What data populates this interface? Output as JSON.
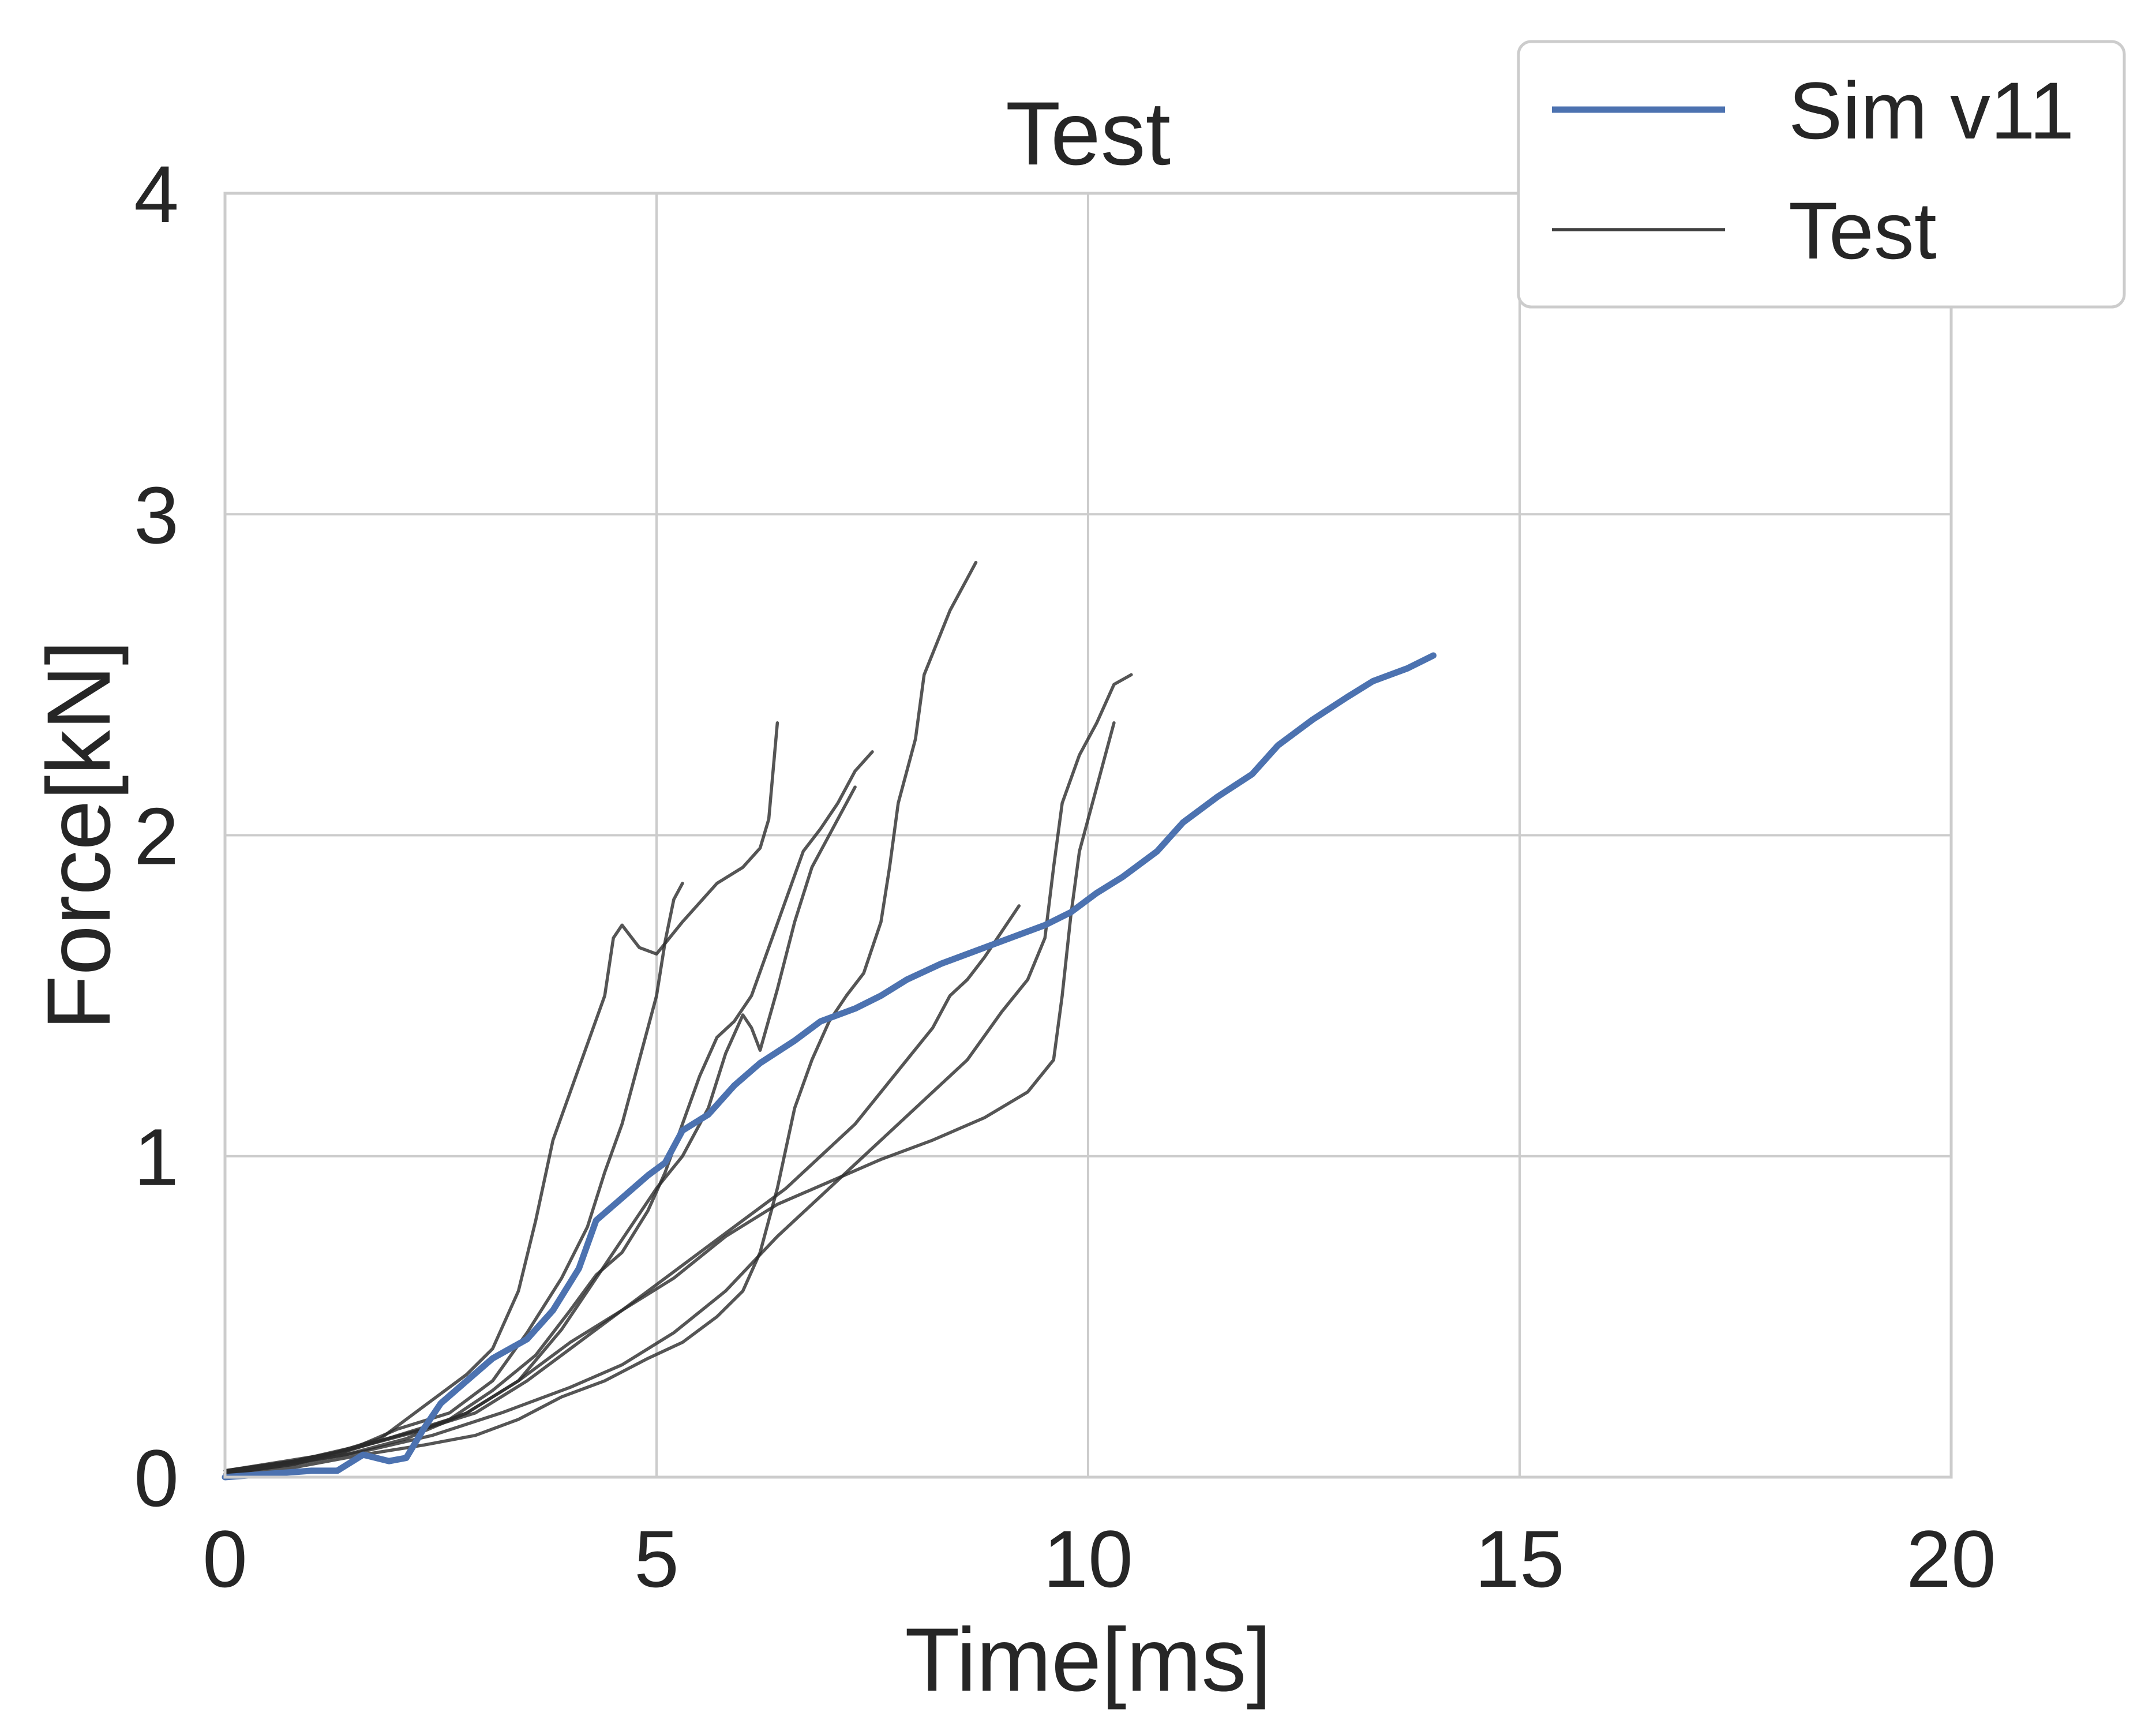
{
  "chart_data": {
    "type": "line",
    "title": "Test",
    "xlabel": "Time[ms]",
    "ylabel": "Force[kN]",
    "xlim": [
      0,
      20
    ],
    "ylim": [
      0,
      4
    ],
    "xticks": [
      0,
      5,
      10,
      15,
      20
    ],
    "yticks": [
      0,
      1,
      2,
      3,
      4
    ],
    "xtick_labels": [
      "0",
      "5",
      "10",
      "15",
      "20"
    ],
    "ytick_labels": [
      "0",
      "1",
      "2",
      "3",
      "4"
    ],
    "grid": true,
    "legend_position": "top-right",
    "legend": [
      {
        "label": "Sim v11",
        "color": "#4c72b0",
        "style": "thick"
      },
      {
        "label": "Test",
        "color": "#404040",
        "style": "thin"
      }
    ],
    "series": [
      {
        "name": "Sim v11",
        "color": "#4c72b0",
        "points": [
          [
            0,
            0.0
          ],
          [
            0.5,
            0.01
          ],
          [
            1.0,
            0.02
          ],
          [
            1.3,
            0.02
          ],
          [
            1.6,
            0.07
          ],
          [
            1.9,
            0.05
          ],
          [
            2.1,
            0.06
          ],
          [
            2.3,
            0.15
          ],
          [
            2.5,
            0.23
          ],
          [
            2.8,
            0.3
          ],
          [
            3.1,
            0.37
          ],
          [
            3.5,
            0.43
          ],
          [
            3.8,
            0.52
          ],
          [
            4.1,
            0.65
          ],
          [
            4.3,
            0.8
          ],
          [
            4.6,
            0.87
          ],
          [
            4.9,
            0.94
          ],
          [
            5.1,
            0.98
          ],
          [
            5.3,
            1.08
          ],
          [
            5.6,
            1.13
          ],
          [
            5.9,
            1.22
          ],
          [
            6.2,
            1.29
          ],
          [
            6.6,
            1.36
          ],
          [
            6.9,
            1.42
          ],
          [
            7.3,
            1.46
          ],
          [
            7.6,
            1.5
          ],
          [
            7.9,
            1.55
          ],
          [
            8.3,
            1.6
          ],
          [
            8.7,
            1.64
          ],
          [
            9.1,
            1.68
          ],
          [
            9.5,
            1.72
          ],
          [
            9.8,
            1.76
          ],
          [
            10.1,
            1.82
          ],
          [
            10.4,
            1.87
          ],
          [
            10.8,
            1.95
          ],
          [
            11.1,
            2.04
          ],
          [
            11.5,
            2.12
          ],
          [
            11.9,
            2.19
          ],
          [
            12.2,
            2.28
          ],
          [
            12.6,
            2.36
          ],
          [
            13.0,
            2.43
          ],
          [
            13.3,
            2.48
          ],
          [
            13.7,
            2.52
          ],
          [
            14.0,
            2.56
          ]
        ]
      },
      {
        "name": "",
        "color": "#2b2b2b",
        "points": [
          [
            0,
            0.02
          ],
          [
            0.6,
            0.04
          ],
          [
            1.2,
            0.07
          ],
          [
            1.8,
            0.12
          ],
          [
            2.3,
            0.22
          ],
          [
            2.8,
            0.32
          ],
          [
            3.1,
            0.4
          ],
          [
            3.4,
            0.58
          ],
          [
            3.6,
            0.8
          ],
          [
            3.8,
            1.05
          ],
          [
            4.0,
            1.2
          ],
          [
            4.2,
            1.35
          ],
          [
            4.4,
            1.5
          ],
          [
            4.5,
            1.68
          ],
          [
            4.6,
            1.72
          ],
          [
            4.8,
            1.65
          ],
          [
            5.0,
            1.63
          ],
          [
            5.3,
            1.73
          ],
          [
            5.7,
            1.85
          ],
          [
            6.0,
            1.9
          ],
          [
            6.2,
            1.96
          ],
          [
            6.3,
            2.05
          ],
          [
            6.4,
            2.35
          ]
        ]
      },
      {
        "name": "",
        "color": "#2b2b2b",
        "points": [
          [
            0,
            0.01
          ],
          [
            0.8,
            0.04
          ],
          [
            1.4,
            0.08
          ],
          [
            2.0,
            0.15
          ],
          [
            2.6,
            0.2
          ],
          [
            3.1,
            0.3
          ],
          [
            3.5,
            0.45
          ],
          [
            3.9,
            0.62
          ],
          [
            4.2,
            0.78
          ],
          [
            4.4,
            0.95
          ],
          [
            4.6,
            1.1
          ],
          [
            4.8,
            1.3
          ],
          [
            5.0,
            1.5
          ],
          [
            5.1,
            1.67
          ],
          [
            5.2,
            1.8
          ],
          [
            5.3,
            1.85
          ]
        ]
      },
      {
        "name": "",
        "color": "#2b2b2b",
        "points": [
          [
            0,
            0.02
          ],
          [
            0.7,
            0.05
          ],
          [
            1.4,
            0.08
          ],
          [
            2.0,
            0.13
          ],
          [
            2.6,
            0.18
          ],
          [
            3.1,
            0.27
          ],
          [
            3.6,
            0.38
          ],
          [
            4.0,
            0.52
          ],
          [
            4.3,
            0.63
          ],
          [
            4.6,
            0.7
          ],
          [
            4.9,
            0.83
          ],
          [
            5.1,
            0.95
          ],
          [
            5.3,
            1.1
          ],
          [
            5.5,
            1.25
          ],
          [
            5.7,
            1.37
          ],
          [
            5.9,
            1.42
          ],
          [
            6.1,
            1.5
          ],
          [
            6.3,
            1.65
          ],
          [
            6.5,
            1.8
          ],
          [
            6.7,
            1.95
          ],
          [
            6.9,
            2.02
          ],
          [
            7.1,
            2.1
          ],
          [
            7.3,
            2.2
          ],
          [
            7.5,
            2.26
          ]
        ]
      },
      {
        "name": "",
        "color": "#2b2b2b",
        "points": [
          [
            0,
            0.01
          ],
          [
            0.7,
            0.04
          ],
          [
            1.4,
            0.07
          ],
          [
            2.1,
            0.12
          ],
          [
            2.8,
            0.2
          ],
          [
            3.4,
            0.3
          ],
          [
            3.9,
            0.46
          ],
          [
            4.3,
            0.62
          ],
          [
            4.7,
            0.78
          ],
          [
            5.0,
            0.9
          ],
          [
            5.3,
            1.0
          ],
          [
            5.6,
            1.15
          ],
          [
            5.8,
            1.32
          ],
          [
            6.0,
            1.44
          ],
          [
            6.1,
            1.4
          ],
          [
            6.2,
            1.33
          ],
          [
            6.4,
            1.52
          ],
          [
            6.6,
            1.73
          ],
          [
            6.8,
            1.9
          ],
          [
            7.0,
            2.0
          ],
          [
            7.2,
            2.1
          ],
          [
            7.3,
            2.15
          ]
        ]
      },
      {
        "name": "",
        "color": "#2b2b2b",
        "points": [
          [
            0,
            0.01
          ],
          [
            0.8,
            0.03
          ],
          [
            1.6,
            0.07
          ],
          [
            2.3,
            0.1
          ],
          [
            2.9,
            0.13
          ],
          [
            3.4,
            0.18
          ],
          [
            3.9,
            0.25
          ],
          [
            4.4,
            0.3
          ],
          [
            4.9,
            0.37
          ],
          [
            5.3,
            0.42
          ],
          [
            5.7,
            0.5
          ],
          [
            6.0,
            0.58
          ],
          [
            6.2,
            0.7
          ],
          [
            6.4,
            0.9
          ],
          [
            6.6,
            1.15
          ],
          [
            6.8,
            1.3
          ],
          [
            7.0,
            1.42
          ],
          [
            7.2,
            1.5
          ],
          [
            7.4,
            1.57
          ],
          [
            7.6,
            1.73
          ],
          [
            7.7,
            1.9
          ],
          [
            7.8,
            2.1
          ],
          [
            8.0,
            2.3
          ],
          [
            8.1,
            2.5
          ],
          [
            8.4,
            2.7
          ],
          [
            8.6,
            2.8
          ],
          [
            8.7,
            2.85
          ]
        ]
      },
      {
        "name": "",
        "color": "#2b2b2b",
        "points": [
          [
            0,
            0.02
          ],
          [
            0.8,
            0.05
          ],
          [
            1.6,
            0.1
          ],
          [
            2.3,
            0.15
          ],
          [
            2.9,
            0.2
          ],
          [
            3.5,
            0.3
          ],
          [
            4.0,
            0.4
          ],
          [
            4.5,
            0.5
          ],
          [
            5.0,
            0.6
          ],
          [
            5.5,
            0.7
          ],
          [
            6.0,
            0.8
          ],
          [
            6.5,
            0.9
          ],
          [
            6.9,
            1.0
          ],
          [
            7.3,
            1.1
          ],
          [
            7.6,
            1.2
          ],
          [
            7.9,
            1.3
          ],
          [
            8.2,
            1.4
          ],
          [
            8.4,
            1.5
          ],
          [
            8.6,
            1.55
          ],
          [
            8.8,
            1.62
          ],
          [
            9.0,
            1.7
          ],
          [
            9.2,
            1.78
          ]
        ]
      },
      {
        "name": "",
        "color": "#2b2b2b",
        "points": [
          [
            0,
            0.02
          ],
          [
            0.8,
            0.05
          ],
          [
            1.5,
            0.09
          ],
          [
            2.2,
            0.14
          ],
          [
            2.8,
            0.2
          ],
          [
            3.4,
            0.3
          ],
          [
            4.0,
            0.42
          ],
          [
            4.6,
            0.52
          ],
          [
            5.2,
            0.62
          ],
          [
            5.8,
            0.75
          ],
          [
            6.4,
            0.85
          ],
          [
            7.0,
            0.92
          ],
          [
            7.6,
            0.99
          ],
          [
            8.2,
            1.05
          ],
          [
            8.8,
            1.12
          ],
          [
            9.3,
            1.2
          ],
          [
            9.6,
            1.3
          ],
          [
            9.7,
            1.5
          ],
          [
            9.8,
            1.75
          ],
          [
            9.9,
            1.95
          ],
          [
            10.0,
            2.05
          ],
          [
            10.1,
            2.15
          ],
          [
            10.2,
            2.25
          ],
          [
            10.3,
            2.35
          ]
        ]
      },
      {
        "name": "",
        "color": "#2b2b2b",
        "points": [
          [
            0,
            0.01
          ],
          [
            0.8,
            0.04
          ],
          [
            1.6,
            0.08
          ],
          [
            2.4,
            0.13
          ],
          [
            3.2,
            0.2
          ],
          [
            4.0,
            0.28
          ],
          [
            4.6,
            0.35
          ],
          [
            5.2,
            0.45
          ],
          [
            5.8,
            0.58
          ],
          [
            6.4,
            0.75
          ],
          [
            7.0,
            0.9
          ],
          [
            7.4,
            1.0
          ],
          [
            7.8,
            1.1
          ],
          [
            8.2,
            1.2
          ],
          [
            8.6,
            1.3
          ],
          [
            9.0,
            1.45
          ],
          [
            9.3,
            1.55
          ],
          [
            9.5,
            1.68
          ],
          [
            9.6,
            1.9
          ],
          [
            9.7,
            2.1
          ],
          [
            9.9,
            2.25
          ],
          [
            10.1,
            2.35
          ],
          [
            10.3,
            2.47
          ],
          [
            10.5,
            2.5
          ]
        ]
      }
    ]
  }
}
